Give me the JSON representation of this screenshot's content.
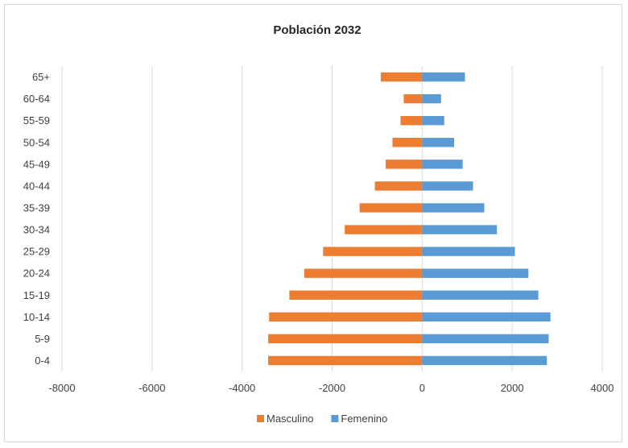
{
  "chart_data": {
    "type": "bar",
    "orientation": "horizontal",
    "stacked": true,
    "title": "Población 2032",
    "categories": [
      "0-4",
      "5-9",
      "10-14",
      "15-19",
      "20-24",
      "25-29",
      "30-34",
      "35-39",
      "40-44",
      "45-49",
      "50-54",
      "55-59",
      "60-64",
      "65+"
    ],
    "series": [
      {
        "name": "Masculino",
        "color": "#ED7D31",
        "values": [
          -3420,
          -3420,
          -3400,
          -2950,
          -2620,
          -2200,
          -1720,
          -1390,
          -1050,
          -810,
          -660,
          -480,
          -410,
          -920
        ]
      },
      {
        "name": "Femenino",
        "color": "#5B9BD5",
        "values": [
          2770,
          2810,
          2850,
          2580,
          2360,
          2060,
          1660,
          1380,
          1130,
          900,
          710,
          490,
          420,
          950
        ]
      }
    ],
    "xlim": [
      -8000,
      4000
    ],
    "xticks": [
      -8000,
      -6000,
      -4000,
      -2000,
      0,
      2000,
      4000
    ],
    "grid": true,
    "legend_position": "bottom"
  }
}
